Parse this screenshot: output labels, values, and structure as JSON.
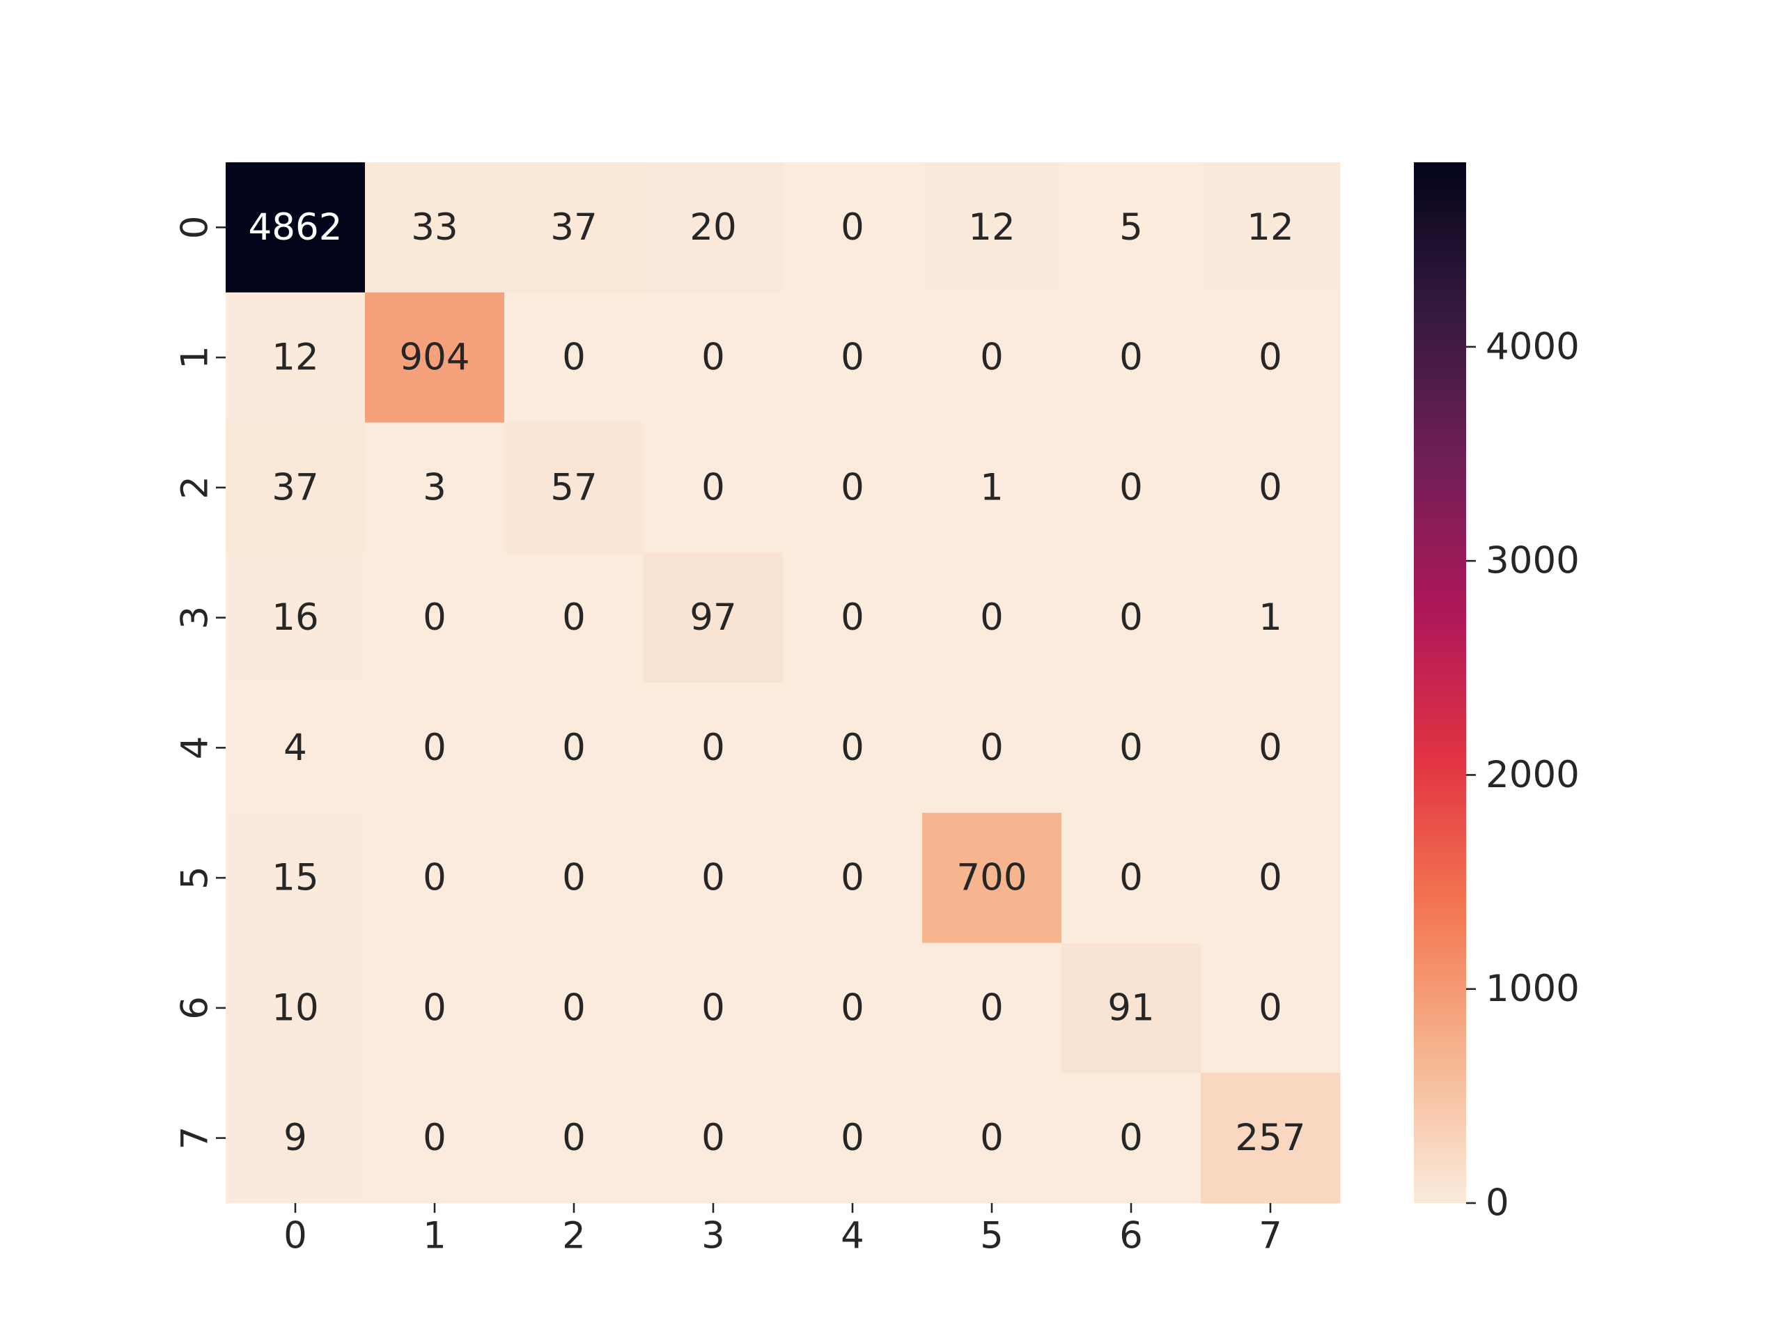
{
  "chart_data": {
    "type": "heatmap",
    "title": "",
    "xlabel": "",
    "ylabel": "",
    "x_categories": [
      "0",
      "1",
      "2",
      "3",
      "4",
      "5",
      "6",
      "7"
    ],
    "y_categories": [
      "0",
      "1",
      "2",
      "3",
      "4",
      "5",
      "6",
      "7"
    ],
    "values": [
      [
        4862,
        33,
        37,
        20,
        0,
        12,
        5,
        12
      ],
      [
        12,
        904,
        0,
        0,
        0,
        0,
        0,
        0
      ],
      [
        37,
        3,
        57,
        0,
        0,
        1,
        0,
        0
      ],
      [
        16,
        0,
        0,
        97,
        0,
        0,
        0,
        1
      ],
      [
        4,
        0,
        0,
        0,
        0,
        0,
        0,
        0
      ],
      [
        15,
        0,
        0,
        0,
        0,
        700,
        0,
        0
      ],
      [
        10,
        0,
        0,
        0,
        0,
        0,
        91,
        0
      ],
      [
        9,
        0,
        0,
        0,
        0,
        0,
        0,
        257
      ]
    ],
    "value_range": [
      0,
      4862
    ],
    "colorbar": {
      "ticks": [
        0,
        1000,
        2000,
        3000,
        4000
      ],
      "tick_labels": [
        "0",
        "1000",
        "2000",
        "3000",
        "4000"
      ],
      "colormap": "rocket_r",
      "color_stops": [
        "#faebdd",
        "#f6b48f",
        "#f37651",
        "#e13342",
        "#ad1759",
        "#701f57",
        "#35193e",
        "#03051a"
      ]
    },
    "grid": false,
    "legend": "colorbar-right"
  }
}
